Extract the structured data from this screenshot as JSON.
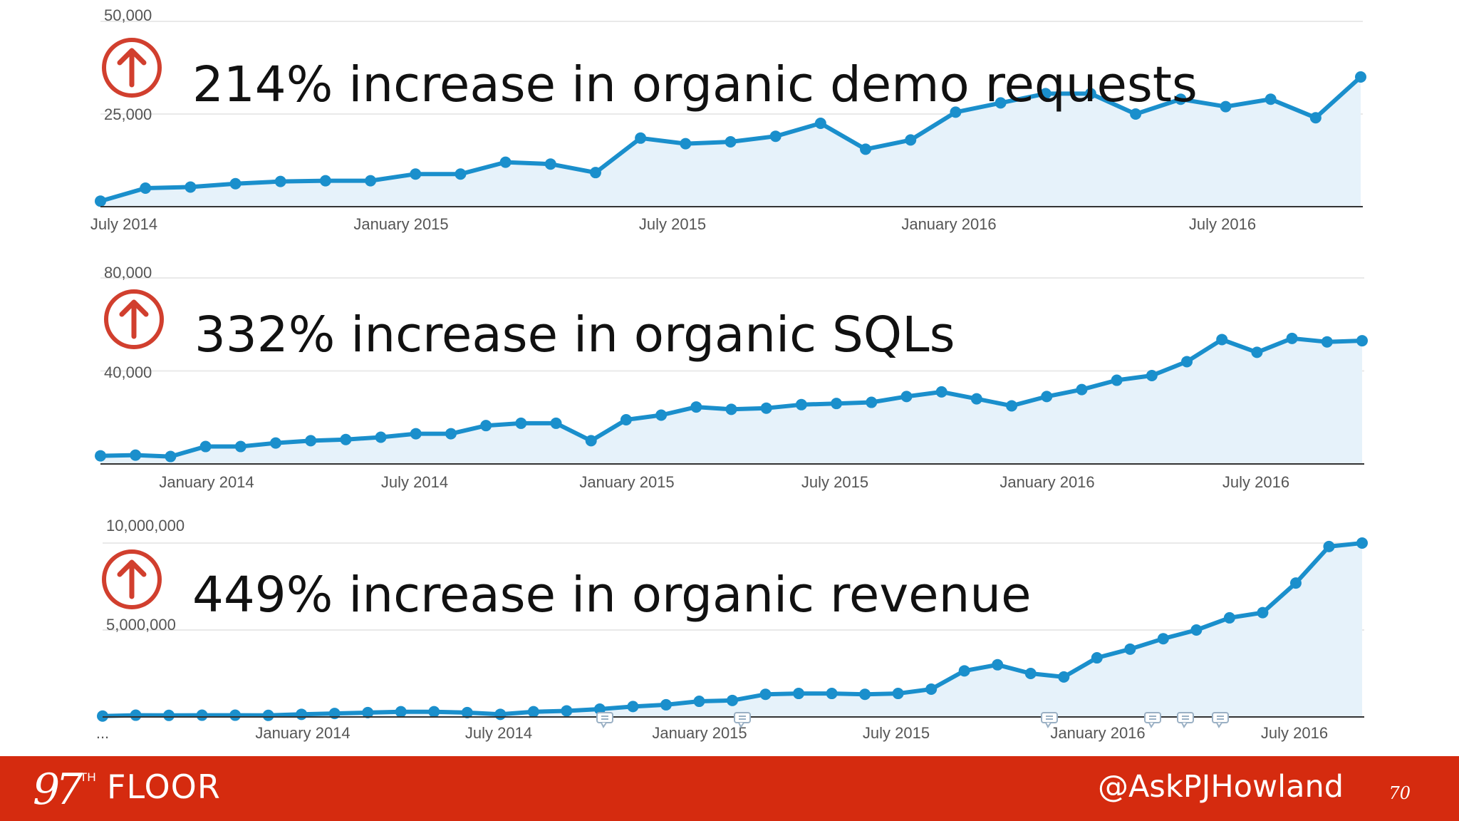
{
  "chart_data": [
    {
      "type": "area",
      "headline": "214% increase in organic demo requests",
      "ylim": [
        0,
        50000
      ],
      "ytick_labels": [
        "50,000",
        "25,000"
      ],
      "xtick_labels": [
        "July 2014",
        "January 2015",
        "July 2015",
        "January 2016",
        "July 2016"
      ],
      "values": [
        1500,
        5000,
        5300,
        6200,
        6800,
        7000,
        7000,
        8800,
        8800,
        12000,
        11500,
        9200,
        18500,
        17000,
        17500,
        19000,
        22500,
        15500,
        18000,
        25500,
        28000,
        30500,
        30500,
        25000,
        29000,
        27000,
        29000,
        24000,
        35000
      ]
    },
    {
      "type": "area",
      "headline": "332% increase in organic SQLs",
      "ylim": [
        0,
        80000
      ],
      "ytick_labels": [
        "80,000",
        "40,000"
      ],
      "xtick_labels": [
        "January 2014",
        "July 2014",
        "January 2015",
        "July 2015",
        "January 2016",
        "July 2016"
      ],
      "values": [
        3500,
        3800,
        3200,
        7500,
        7500,
        9000,
        10000,
        10500,
        11500,
        13000,
        13000,
        16500,
        17500,
        17500,
        10000,
        19000,
        21000,
        24500,
        23500,
        24000,
        25500,
        26000,
        26500,
        29000,
        31000,
        28000,
        25000,
        29000,
        32000,
        36000,
        38000,
        44000,
        53500,
        48000,
        54000,
        52500,
        53000
      ]
    },
    {
      "type": "area",
      "headline": "449% increase in organic revenue",
      "ylim": [
        0,
        10000000
      ],
      "ytick_labels": [
        "10,000,000",
        "5,000,000"
      ],
      "xtick_labels": [
        "...",
        "January 2014",
        "July 2014",
        "January 2015",
        "July 2015",
        "January 2016",
        "July 2016"
      ],
      "values": [
        50000,
        100000,
        90000,
        100000,
        100000,
        90000,
        150000,
        200000,
        250000,
        300000,
        300000,
        250000,
        150000,
        300000,
        350000,
        450000,
        600000,
        700000,
        900000,
        950000,
        1300000,
        1350000,
        1350000,
        1300000,
        1350000,
        1600000,
        2650000,
        3000000,
        2500000,
        2300000,
        3400000,
        3900000,
        4500000,
        5000000,
        5700000,
        6000000,
        7700000,
        9800000,
        10000000
      ]
    }
  ],
  "colors": {
    "line": "#1a8fcc",
    "area": "#e6f2fa",
    "arrow": "#d13f2e",
    "footer": "#d52b0f"
  },
  "footer": {
    "brand_number": "97",
    "brand_superscript": "TH",
    "brand_word": "FLOOR",
    "handle": "@AskPJHowland",
    "page_number": "70"
  },
  "icons": [
    "up-arrow-circle-icon",
    "annotation-marker-icon"
  ]
}
